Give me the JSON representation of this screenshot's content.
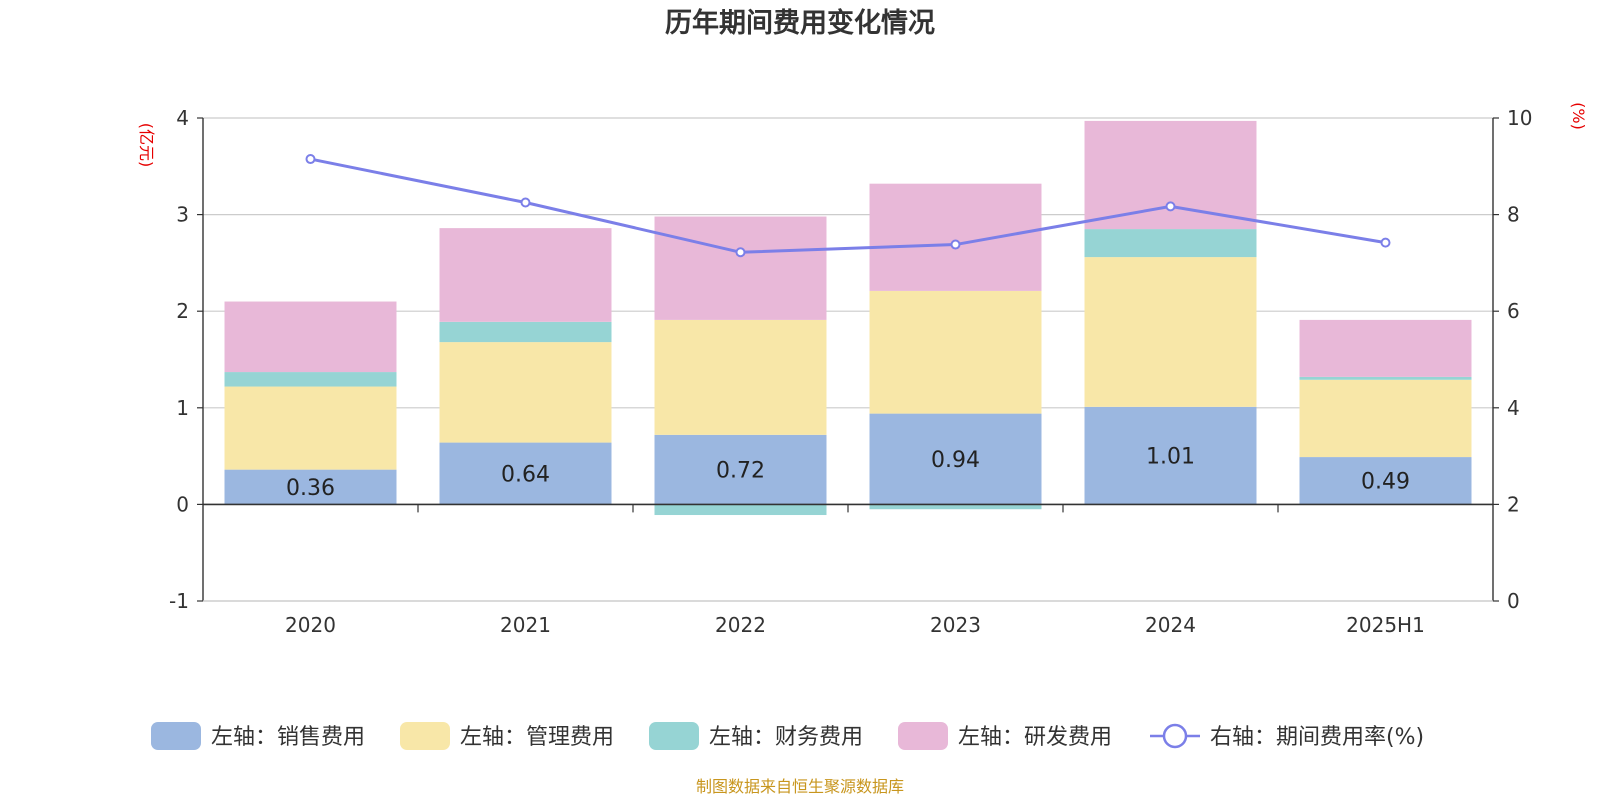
{
  "chart_data": {
    "type": "bar",
    "title": "历年期间费用变化情况",
    "categories": [
      "2020",
      "2021",
      "2022",
      "2023",
      "2024",
      "2025H1"
    ],
    "left_axis": {
      "unit": "(亿元)",
      "ylim": [
        -1,
        4
      ],
      "ticks": [
        "-1",
        "0",
        "1",
        "2",
        "3",
        "4"
      ]
    },
    "right_axis": {
      "unit": "(%)",
      "ylim": [
        0,
        10
      ],
      "ticks": [
        "0",
        "2",
        "4",
        "6",
        "8",
        "10"
      ]
    },
    "stacked": true,
    "series": [
      {
        "name": "左轴：销售费用",
        "color": "#9bb7e0",
        "values": [
          0.36,
          0.64,
          0.72,
          0.94,
          1.01,
          0.49
        ]
      },
      {
        "name": "左轴：管理费用",
        "color": "#f8e7a8",
        "values": [
          0.86,
          1.04,
          1.19,
          1.27,
          1.55,
          0.8
        ]
      },
      {
        "name": "左轴：财务费用",
        "color": "#96d4d4",
        "values": [
          0.15,
          0.21,
          -0.11,
          -0.05,
          0.29,
          0.03
        ]
      },
      {
        "name": "左轴：研发费用",
        "color": "#e8b8d8",
        "values": [
          0.73,
          0.97,
          1.07,
          1.11,
          1.12,
          0.59
        ]
      }
    ],
    "bar_labels": [
      "0.36",
      "0.64",
      "0.72",
      "0.94",
      "1.01",
      "0.49"
    ],
    "line": {
      "name": "右轴：期间费用率(%)",
      "color": "#7b7fe8",
      "values": [
        9.15,
        8.25,
        7.22,
        7.38,
        8.17,
        7.42
      ]
    },
    "grid": true,
    "legend": "bottom",
    "source": "制图数据来自恒生聚源数据库"
  }
}
